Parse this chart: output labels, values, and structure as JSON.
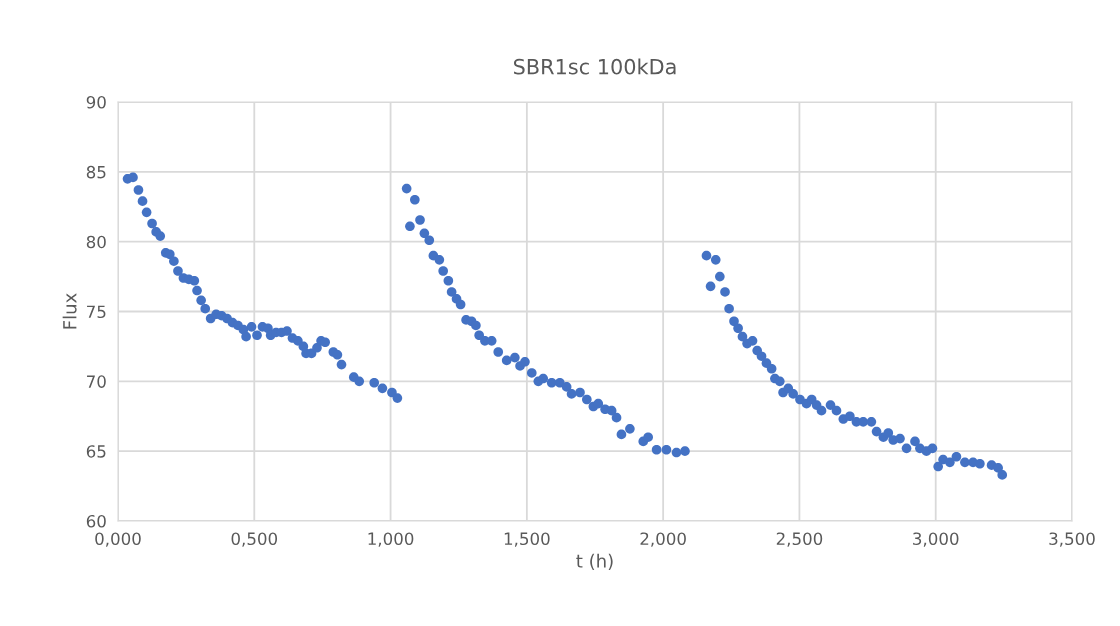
{
  "chart_data": {
    "type": "scatter",
    "title": "SBR1sc 100kDa",
    "xlabel": "t (h)",
    "ylabel": "Flux",
    "series": [
      {
        "color": "#4472c4",
        "x": [
          0.035,
          0.055,
          0.075,
          0.09,
          0.105,
          0.125,
          0.14,
          0.155,
          0.175,
          0.19,
          0.205,
          0.22,
          0.24,
          0.26,
          0.28,
          0.29,
          0.305,
          0.32,
          0.34,
          0.36,
          0.38,
          0.4,
          0.42,
          0.44,
          0.46,
          0.47,
          0.49,
          0.51,
          0.53,
          0.55,
          0.56,
          0.58,
          0.6,
          0.62,
          0.64,
          0.66,
          0.68,
          0.69,
          0.71,
          0.73,
          0.745,
          0.76,
          0.79,
          0.805,
          0.82,
          0.865,
          0.885,
          0.94,
          0.97,
          1.005,
          1.025,
          1.059,
          1.089,
          1.071,
          1.108,
          1.124,
          1.142,
          1.157,
          1.179,
          1.193,
          1.212,
          1.224,
          1.242,
          1.257,
          1.277,
          1.297,
          1.313,
          1.325,
          1.346,
          1.371,
          1.395,
          1.426,
          1.456,
          1.475,
          1.493,
          1.518,
          1.542,
          1.56,
          1.591,
          1.621,
          1.646,
          1.664,
          1.695,
          1.72,
          1.744,
          1.762,
          1.787,
          1.811,
          1.829,
          1.847,
          1.878,
          1.927,
          1.945,
          1.976,
          2.012,
          2.049,
          2.08,
          2.159,
          2.193,
          2.174,
          2.208,
          2.227,
          2.242,
          2.26,
          2.275,
          2.291,
          2.308,
          2.328,
          2.345,
          2.361,
          2.379,
          2.398,
          2.41,
          2.428,
          2.44,
          2.459,
          2.477,
          2.502,
          2.526,
          2.545,
          2.563,
          2.581,
          2.614,
          2.636,
          2.661,
          2.685,
          2.709,
          2.734,
          2.764,
          2.783,
          2.808,
          2.826,
          2.844,
          2.869,
          2.893,
          2.924,
          2.942,
          2.966,
          2.988,
          3.009,
          3.027,
          3.052,
          3.076,
          3.107,
          3.137,
          3.162,
          3.205,
          3.229,
          3.244
        ],
        "values": [
          84.5,
          84.6,
          83.7,
          82.9,
          82.1,
          81.3,
          80.7,
          80.4,
          79.2,
          79.1,
          78.6,
          77.9,
          77.4,
          77.3,
          77.2,
          76.5,
          75.8,
          75.2,
          74.5,
          74.8,
          74.7,
          74.5,
          74.2,
          74.0,
          73.7,
          73.2,
          73.9,
          73.3,
          73.9,
          73.8,
          73.3,
          73.5,
          73.5,
          73.6,
          73.1,
          72.9,
          72.5,
          72.0,
          72.0,
          72.4,
          72.9,
          72.8,
          72.1,
          71.9,
          71.2,
          70.3,
          70.0,
          69.9,
          69.5,
          69.2,
          68.8,
          83.8,
          83.0,
          81.1,
          81.55,
          80.6,
          80.1,
          79.0,
          78.7,
          77.9,
          77.2,
          76.4,
          75.9,
          75.5,
          74.4,
          74.3,
          74.0,
          73.3,
          72.9,
          72.9,
          72.1,
          71.5,
          71.7,
          71.1,
          71.4,
          70.6,
          70.0,
          70.2,
          69.9,
          69.9,
          69.6,
          69.1,
          69.2,
          68.7,
          68.2,
          68.4,
          68.0,
          67.9,
          67.4,
          66.2,
          66.6,
          65.7,
          66.0,
          65.1,
          65.1,
          64.9,
          65.0,
          79.0,
          78.7,
          76.8,
          77.5,
          76.4,
          75.2,
          74.3,
          73.8,
          73.2,
          72.7,
          72.9,
          72.2,
          71.8,
          71.3,
          70.9,
          70.2,
          70.0,
          69.2,
          69.5,
          69.1,
          68.7,
          68.4,
          68.7,
          68.3,
          67.9,
          68.3,
          67.9,
          67.3,
          67.5,
          67.1,
          67.1,
          67.1,
          66.4,
          66.0,
          66.3,
          65.8,
          65.9,
          65.2,
          65.7,
          65.2,
          65.0,
          65.2,
          63.9,
          64.4,
          64.2,
          64.6,
          64.2,
          64.2,
          64.1,
          64.0,
          63.8,
          63.3
        ]
      }
    ],
    "xlim": [
      0,
      3.5
    ],
    "xticks": [
      {
        "value": 0,
        "label": "0,000"
      },
      {
        "value": 0.5,
        "label": "0,500"
      },
      {
        "value": 1,
        "label": "1,000"
      },
      {
        "value": 1.5,
        "label": "1,500"
      },
      {
        "value": 2,
        "label": "2,000"
      },
      {
        "value": 2.5,
        "label": "2,500"
      },
      {
        "value": 3,
        "label": "3,000"
      },
      {
        "value": 3.5,
        "label": "3,500"
      }
    ],
    "ylim": [
      60,
      90
    ],
    "yticks": [
      60,
      65,
      70,
      75,
      80,
      85,
      90
    ],
    "grid": true,
    "marker": "circle"
  }
}
